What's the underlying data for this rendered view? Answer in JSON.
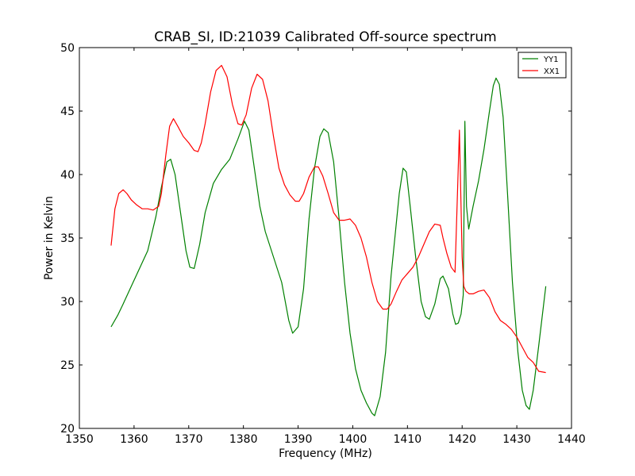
{
  "chart_data": {
    "type": "line",
    "title": "CRAB_SI, ID:21039 Calibrated Off-source spectrum",
    "xlabel": "Frequency (MHz)",
    "ylabel": "Power in Kelvin",
    "xlim": [
      1350,
      1440
    ],
    "ylim": [
      20,
      50
    ],
    "xticks": [
      1350,
      1360,
      1370,
      1380,
      1390,
      1400,
      1410,
      1420,
      1430,
      1440
    ],
    "yticks": [
      20,
      25,
      30,
      35,
      40,
      45,
      50
    ],
    "grid": false,
    "legend_position": "top-right",
    "series": [
      {
        "name": "YY1",
        "color": "#008000",
        "x": [
          1355.8,
          1357.0,
          1358.0,
          1359.5,
          1361.0,
          1362.5,
          1364.0,
          1365.0,
          1366.0,
          1366.7,
          1367.5,
          1368.5,
          1369.5,
          1370.2,
          1371.0,
          1372.0,
          1373.0,
          1374.5,
          1376.0,
          1377.5,
          1379.0,
          1380.2,
          1381.0,
          1382.0,
          1383.0,
          1384.0,
          1385.5,
          1387.0,
          1388.3,
          1389.0,
          1390.0,
          1391.0,
          1392.0,
          1393.0,
          1394.0,
          1394.7,
          1395.5,
          1396.5,
          1397.5,
          1398.5,
          1399.5,
          1400.5,
          1401.5,
          1402.5,
          1403.5,
          1404.0,
          1405.0,
          1406.0,
          1407.0,
          1408.5,
          1409.2,
          1409.8,
          1410.5,
          1411.5,
          1412.5,
          1413.3,
          1414.0,
          1415.0,
          1416.0,
          1416.5,
          1417.5,
          1418.3,
          1418.8,
          1419.3,
          1419.8,
          1420.2,
          1420.5,
          1420.8,
          1421.2,
          1422.0,
          1423.0,
          1424.0,
          1425.0,
          1425.7,
          1426.2,
          1426.8,
          1427.5,
          1428.3,
          1429.2,
          1430.2,
          1431.0,
          1431.7,
          1432.3,
          1433.0,
          1434.0,
          1435.3
        ],
        "y": [
          28.0,
          28.9,
          29.8,
          31.2,
          32.6,
          34.0,
          36.7,
          39.0,
          41.0,
          41.2,
          40.0,
          37.0,
          34.0,
          32.7,
          32.6,
          34.5,
          37.0,
          39.3,
          40.4,
          41.2,
          42.8,
          44.2,
          43.5,
          40.5,
          37.5,
          35.5,
          33.5,
          31.5,
          28.5,
          27.5,
          28.0,
          31.0,
          36.5,
          40.5,
          43.0,
          43.6,
          43.3,
          41.0,
          36.5,
          31.5,
          27.5,
          24.7,
          23.0,
          22.0,
          21.2,
          21.0,
          22.5,
          26.0,
          32.0,
          38.5,
          40.5,
          40.2,
          37.5,
          33.5,
          30.0,
          28.8,
          28.6,
          29.8,
          31.8,
          32.0,
          31.0,
          29.0,
          28.2,
          28.3,
          29.0,
          30.5,
          44.2,
          37.5,
          35.7,
          37.5,
          39.5,
          42.0,
          45.0,
          47.0,
          47.6,
          47.1,
          44.5,
          38.5,
          31.5,
          26.0,
          23.0,
          21.8,
          21.5,
          23.0,
          26.5,
          31.2
        ]
      },
      {
        "name": "XX1",
        "color": "#ff0000",
        "x": [
          1355.8,
          1356.5,
          1357.2,
          1358.0,
          1358.7,
          1359.5,
          1360.5,
          1361.5,
          1362.5,
          1363.5,
          1364.5,
          1365.0,
          1365.8,
          1366.5,
          1367.2,
          1368.0,
          1369.0,
          1370.0,
          1371.0,
          1371.7,
          1372.3,
          1373.0,
          1374.0,
          1375.0,
          1376.0,
          1377.0,
          1378.0,
          1379.0,
          1379.7,
          1380.5,
          1381.5,
          1382.5,
          1383.5,
          1384.5,
          1385.5,
          1386.5,
          1387.5,
          1388.5,
          1389.5,
          1390.2,
          1391.0,
          1392.0,
          1393.0,
          1393.7,
          1394.5,
          1395.5,
          1396.5,
          1397.5,
          1398.5,
          1399.5,
          1400.5,
          1401.5,
          1402.5,
          1403.5,
          1404.5,
          1405.5,
          1406.3,
          1407.0,
          1408.0,
          1409.0,
          1410.0,
          1411.0,
          1412.0,
          1413.0,
          1414.0,
          1415.0,
          1416.0,
          1416.5,
          1417.2,
          1418.0,
          1418.7,
          1419.5,
          1420.0,
          1420.3,
          1420.7,
          1421.3,
          1422.0,
          1423.0,
          1424.0,
          1425.0,
          1426.0,
          1427.0,
          1428.0,
          1429.0,
          1430.0,
          1431.0,
          1432.0,
          1433.0,
          1434.0,
          1435.3
        ],
        "y": [
          34.4,
          37.3,
          38.5,
          38.8,
          38.5,
          38.0,
          37.6,
          37.3,
          37.3,
          37.2,
          37.5,
          38.5,
          41.5,
          43.8,
          44.4,
          43.8,
          43.0,
          42.5,
          41.9,
          41.8,
          42.5,
          44.0,
          46.5,
          48.2,
          48.6,
          47.7,
          45.5,
          44.0,
          43.9,
          44.7,
          46.8,
          47.9,
          47.5,
          45.8,
          43.0,
          40.5,
          39.2,
          38.4,
          37.9,
          37.9,
          38.5,
          39.8,
          40.6,
          40.6,
          39.9,
          38.5,
          37.0,
          36.4,
          36.4,
          36.5,
          36.0,
          35.0,
          33.5,
          31.5,
          30.0,
          29.4,
          29.4,
          29.8,
          30.8,
          31.7,
          32.2,
          32.7,
          33.5,
          34.5,
          35.5,
          36.1,
          36.0,
          35.0,
          33.8,
          32.7,
          32.3,
          43.5,
          33.5,
          31.2,
          30.8,
          30.6,
          30.6,
          30.8,
          30.9,
          30.3,
          29.2,
          28.5,
          28.2,
          27.8,
          27.2,
          26.4,
          25.6,
          25.2,
          24.5,
          24.4
        ]
      }
    ]
  }
}
